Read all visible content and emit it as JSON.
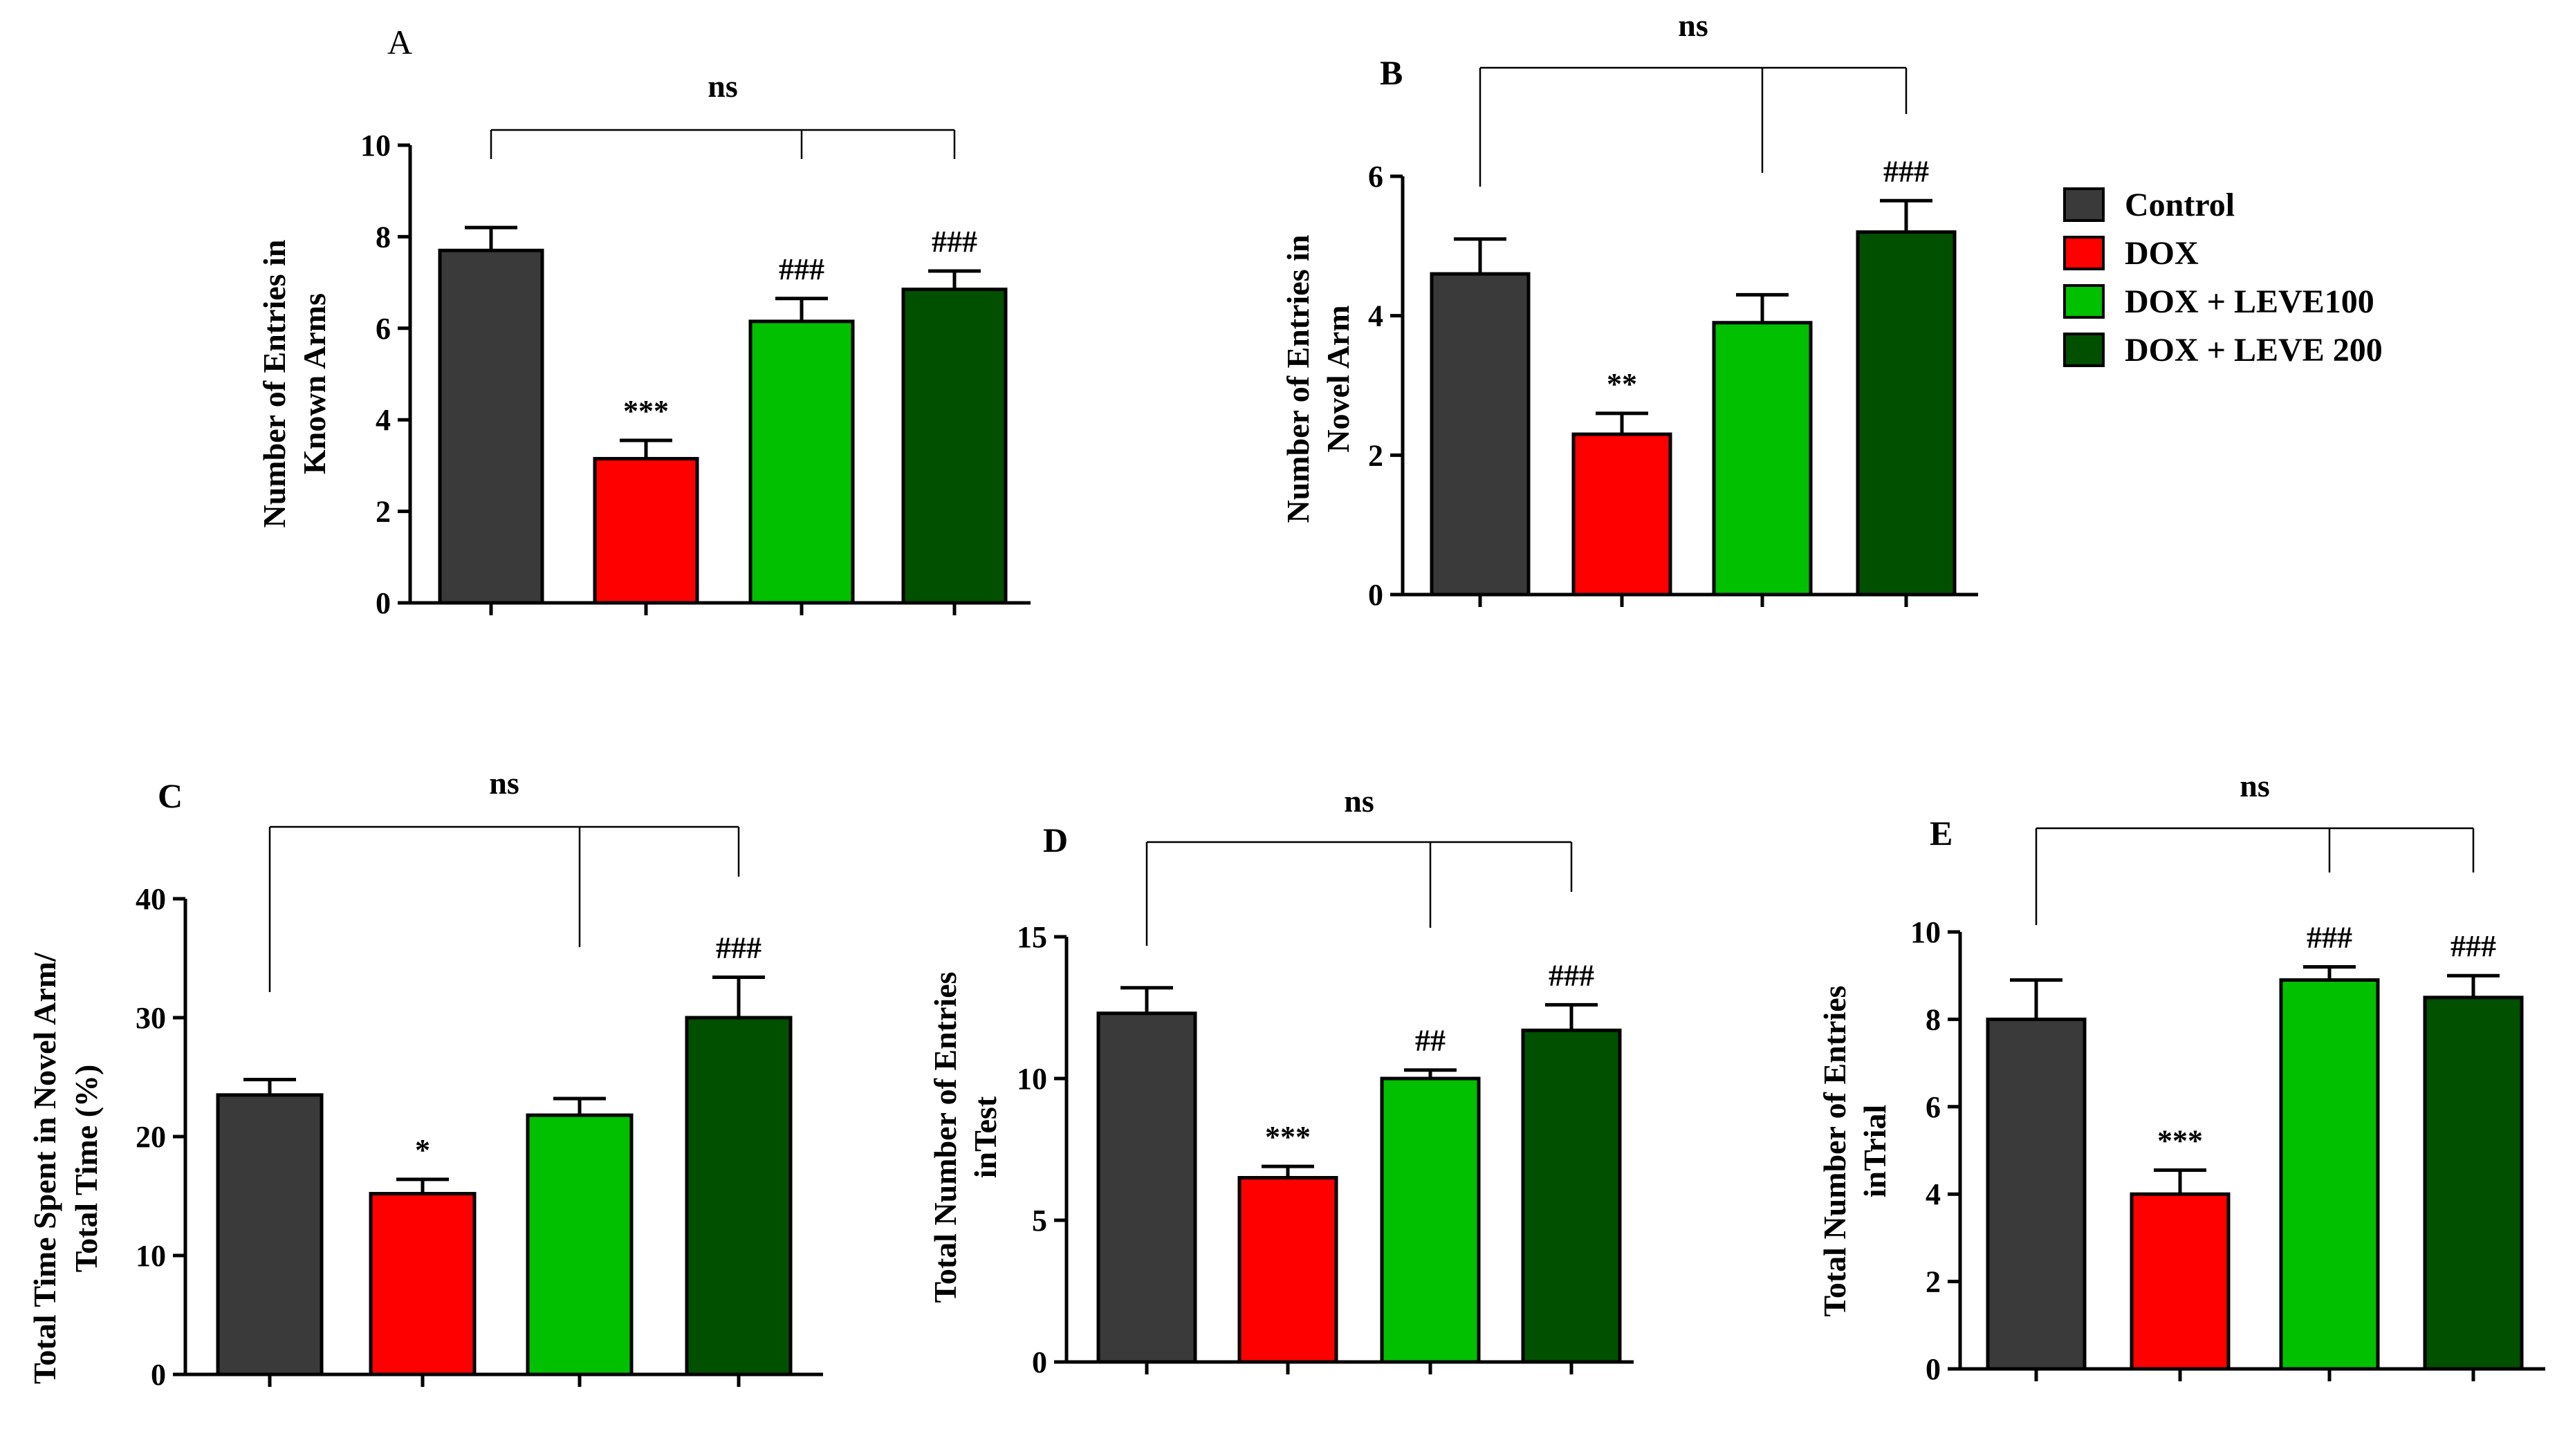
{
  "legend": {
    "items": [
      {
        "label": "Control",
        "color": "#3a3a3a"
      },
      {
        "label": "DOX",
        "color": "#ff0000"
      },
      {
        "label": "DOX + LEVE100",
        "color": "#00c000"
      },
      {
        "label": "DOX + LEVE 200",
        "color": "#005000"
      }
    ]
  },
  "chart_data": [
    {
      "panel": "A",
      "type": "bar",
      "categories": [
        "Control",
        "DOX",
        "DOX + LEVE100",
        "DOX + LEVE 200"
      ],
      "values": [
        7.7,
        3.15,
        6.15,
        6.85
      ],
      "errors": [
        0.5,
        0.4,
        0.5,
        0.4
      ],
      "annotations": [
        "",
        "***",
        "###",
        "###"
      ],
      "ylabel": [
        "Number of Entries in",
        "Known Arms"
      ],
      "ylim": [
        0,
        10
      ],
      "yticks": [
        0,
        2,
        4,
        6,
        8,
        10
      ],
      "bracket_label": "ns",
      "bracket_targets": [
        0,
        2,
        3
      ]
    },
    {
      "panel": "B",
      "type": "bar",
      "categories": [
        "Control",
        "DOX",
        "DOX + LEVE100",
        "DOX + LEVE 200"
      ],
      "values": [
        4.6,
        2.3,
        3.9,
        5.2
      ],
      "errors": [
        0.5,
        0.3,
        0.4,
        0.45
      ],
      "annotations": [
        "",
        "**",
        "",
        "###"
      ],
      "ylabel": [
        "Number of Entries in",
        "Novel Arm"
      ],
      "ylim": [
        0,
        6
      ],
      "yticks": [
        0,
        2,
        4,
        6
      ],
      "bracket_label": "ns",
      "bracket_targets": [
        0,
        2,
        3
      ]
    },
    {
      "panel": "C",
      "type": "bar",
      "categories": [
        "Control",
        "DOX",
        "DOX + LEVE100",
        "DOX + LEVE 200"
      ],
      "values": [
        23.5,
        15.2,
        21.8,
        30.0
      ],
      "errors": [
        1.3,
        1.2,
        1.4,
        3.4
      ],
      "annotations": [
        "",
        "*",
        "",
        "###"
      ],
      "ylabel": [
        "Total Time Spent in Novel Arm/",
        "Total Time (%)"
      ],
      "ylim": [
        0,
        40
      ],
      "yticks": [
        0,
        10,
        20,
        30,
        40
      ],
      "bracket_label": "ns",
      "bracket_targets": [
        0,
        2,
        3
      ]
    },
    {
      "panel": "D",
      "type": "bar",
      "categories": [
        "Control",
        "DOX",
        "DOX + LEVE100",
        "DOX + LEVE 200"
      ],
      "values": [
        12.3,
        6.5,
        10.0,
        11.7
      ],
      "errors": [
        0.9,
        0.4,
        0.3,
        0.9
      ],
      "annotations": [
        "",
        "***",
        "##",
        "###"
      ],
      "ylabel": [
        "Total Number of  Entries",
        "inTest"
      ],
      "ylim": [
        0,
        15
      ],
      "yticks": [
        0,
        5,
        10,
        15
      ],
      "bracket_label": "ns",
      "bracket_targets": [
        0,
        2,
        3
      ]
    },
    {
      "panel": "E",
      "type": "bar",
      "categories": [
        "Control",
        "DOX",
        "DOX + LEVE100",
        "DOX + LEVE 200"
      ],
      "values": [
        8.0,
        4.0,
        8.9,
        8.5
      ],
      "errors": [
        0.9,
        0.55,
        0.3,
        0.5
      ],
      "annotations": [
        "",
        "***",
        "###",
        "###"
      ],
      "ylabel": [
        "Total Number of  Entries",
        "inTrial"
      ],
      "ylim": [
        0,
        10
      ],
      "yticks": [
        0,
        2,
        4,
        6,
        8,
        10
      ],
      "bracket_label": "ns",
      "bracket_targets": [
        0,
        2,
        3
      ]
    }
  ]
}
